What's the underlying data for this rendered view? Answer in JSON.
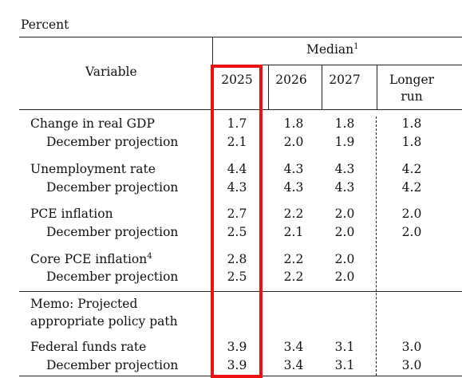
{
  "unit_label": "Percent",
  "header": {
    "variable": "Variable",
    "median": "Median",
    "median_note": "1",
    "years": [
      "2025",
      "2026",
      "2027"
    ],
    "longer_run_line1": "Longer",
    "longer_run_line2": "run"
  },
  "rows": [
    {
      "label": "Change in real GDP",
      "note": "",
      "values": [
        "1.7",
        "1.8",
        "1.8",
        "1.8"
      ]
    },
    {
      "label": "December projection",
      "note": "",
      "values": [
        "2.1",
        "2.0",
        "1.9",
        "1.8"
      ]
    },
    {
      "label": "Unemployment rate",
      "note": "",
      "values": [
        "4.4",
        "4.3",
        "4.3",
        "4.2"
      ]
    },
    {
      "label": "December projection",
      "note": "",
      "values": [
        "4.3",
        "4.3",
        "4.3",
        "4.2"
      ]
    },
    {
      "label": "PCE inflation",
      "note": "",
      "values": [
        "2.7",
        "2.2",
        "2.0",
        "2.0"
      ]
    },
    {
      "label": "December projection",
      "note": "",
      "values": [
        "2.5",
        "2.1",
        "2.0",
        "2.0"
      ]
    },
    {
      "label": "Core PCE inflation",
      "note": "4",
      "values": [
        "2.8",
        "2.2",
        "2.0",
        ""
      ]
    },
    {
      "label": "December projection",
      "note": "",
      "values": [
        "2.5",
        "2.2",
        "2.0",
        ""
      ]
    }
  ],
  "memo": {
    "line1": "Memo: Projected",
    "line2": "appropriate policy path"
  },
  "policy_rows": [
    {
      "label": "Federal funds rate",
      "values": [
        "3.9",
        "3.4",
        "3.1",
        "3.0"
      ]
    },
    {
      "label": "December projection",
      "values": [
        "3.9",
        "3.4",
        "3.1",
        "3.0"
      ]
    }
  ],
  "colors": {
    "highlight": "#ee1111",
    "rule": "#222222"
  }
}
